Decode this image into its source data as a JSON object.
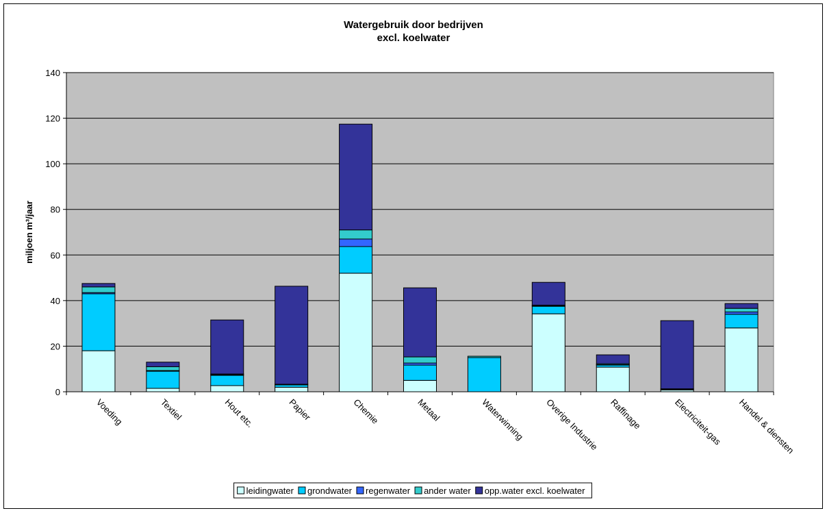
{
  "chart_data": {
    "type": "stacked_bar",
    "title": "Watergebruik door bedrijven",
    "subtitle": "excl. koelwater",
    "ylabel": "miljoen m³/jaar",
    "categories": [
      "Voeding",
      "Textiel",
      "Hout etc.",
      "Papier",
      "Chemie",
      "Metaal",
      "Waterwinning",
      "Overige Industrie",
      "Raffinage",
      "Electriciteit-gas",
      "Handel & diensten"
    ],
    "series": [
      {
        "name": "leidingwater",
        "color": "#ccffff",
        "values": [
          18,
          1.5,
          2.7,
          2,
          52,
          5,
          0,
          34.2,
          10.8,
          0.8,
          28
        ]
      },
      {
        "name": "grondwater",
        "color": "#00ccff",
        "values": [
          25,
          7.5,
          4.5,
          1,
          11.7,
          6.7,
          15,
          3.3,
          0.9,
          0.2,
          6
        ]
      },
      {
        "name": "regenwater",
        "color": "#3366ff",
        "values": [
          0.5,
          0.3,
          0.3,
          0,
          3.3,
          0.9,
          0,
          0.3,
          0.2,
          0,
          1
        ]
      },
      {
        "name": "ander water",
        "color": "#33cccc",
        "values": [
          2.5,
          1.7,
          0.3,
          0.3,
          4,
          2.7,
          0.6,
          0.2,
          0.4,
          0.3,
          1.6
        ]
      },
      {
        "name": "opp.water excl. koelwater",
        "color": "#333399",
        "values": [
          1.5,
          2,
          23.7,
          43,
          46.4,
          30.3,
          0,
          10,
          3.9,
          29.9,
          2.1
        ]
      }
    ],
    "ylim": [
      0,
      140
    ],
    "yticks": [
      0,
      20,
      40,
      60,
      80,
      100,
      120,
      140
    ],
    "grid": true,
    "plot_background": "#c0c0c0",
    "legend": "bottom"
  }
}
